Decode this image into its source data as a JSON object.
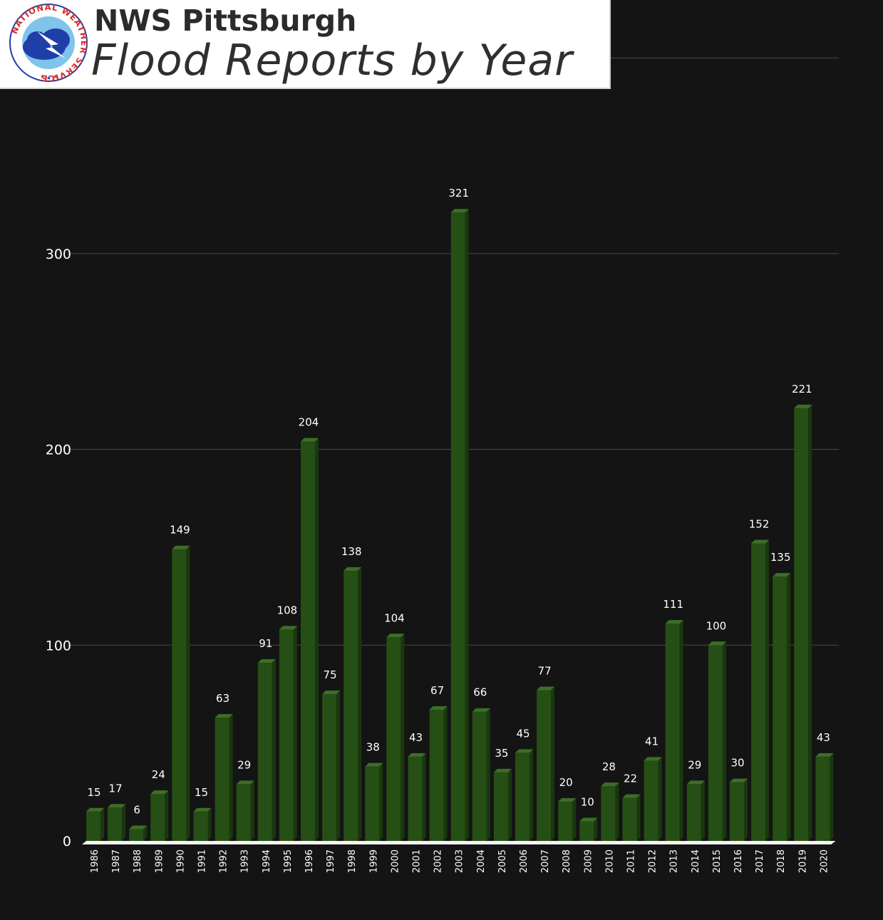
{
  "header": {
    "office": "NWS Pittsburgh",
    "logo_ring_text": "NATIONAL WEATHER SERVICE"
  },
  "colors": {
    "background": "#141414",
    "bar_front": "#264f15",
    "bar_side": "#1a370e",
    "bar_top": "#3d6e27",
    "grid": "#4a4a4a",
    "logo_red": "#d62828",
    "logo_blue": "#1f3fa8"
  },
  "chart_data": {
    "type": "bar",
    "title": "Flood Reports by Year",
    "xlabel": "",
    "ylabel": "",
    "ylim": [
      0,
      300
    ],
    "yticks": [
      0,
      100,
      200,
      300
    ],
    "grid": true,
    "categories": [
      "1986",
      "1987",
      "1988",
      "1989",
      "1990",
      "1991",
      "1992",
      "1993",
      "1994",
      "1995",
      "1996",
      "1997",
      "1998",
      "1999",
      "2000",
      "2001",
      "2002",
      "2003",
      "2004",
      "2005",
      "2006",
      "2007",
      "2008",
      "2009",
      "2010",
      "2011",
      "2012",
      "2013",
      "2014",
      "2015",
      "2016",
      "2017",
      "2018",
      "2019",
      "2020"
    ],
    "values": [
      15,
      17,
      6,
      24,
      149,
      15,
      63,
      29,
      91,
      108,
      204,
      75,
      138,
      38,
      104,
      43,
      67,
      321,
      66,
      35,
      45,
      77,
      20,
      10,
      28,
      22,
      41,
      111,
      29,
      100,
      30,
      152,
      135,
      221,
      43
    ]
  }
}
